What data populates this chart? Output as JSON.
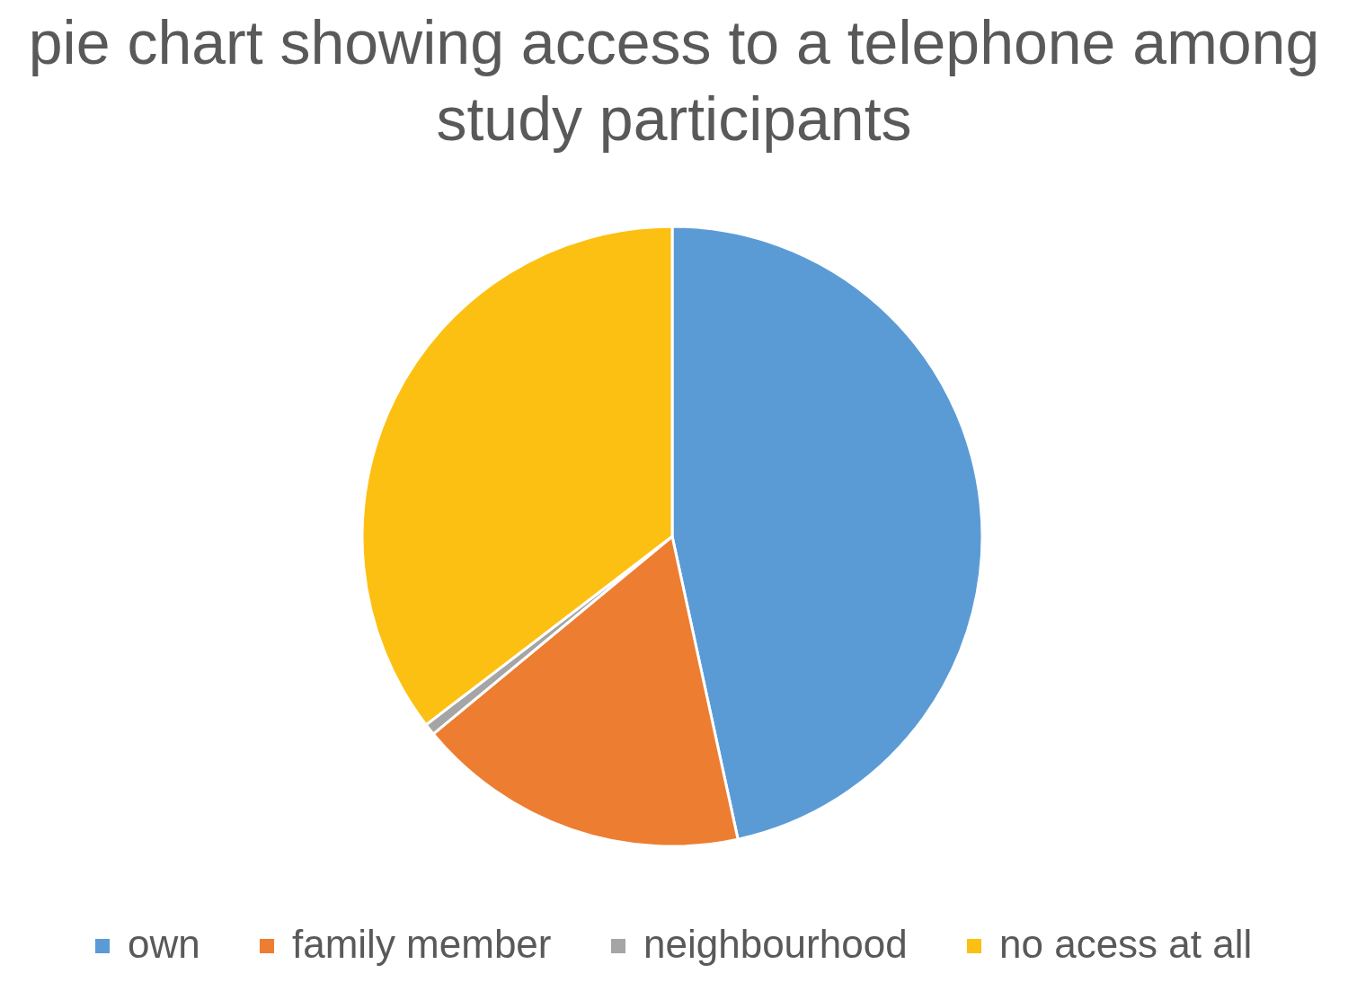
{
  "chart_data": {
    "type": "pie",
    "title": "pie chart showing access to a telephone among study participants",
    "categories": [
      "own",
      "family member",
      "neighbourhood",
      "no acess at all"
    ],
    "values": [
      46.6,
      17.4,
      0.6,
      35.4
    ],
    "colors": [
      "#5b9bd5",
      "#ed7d31",
      "#a5a5a5",
      "#fcc012"
    ],
    "legend": "bottom"
  }
}
